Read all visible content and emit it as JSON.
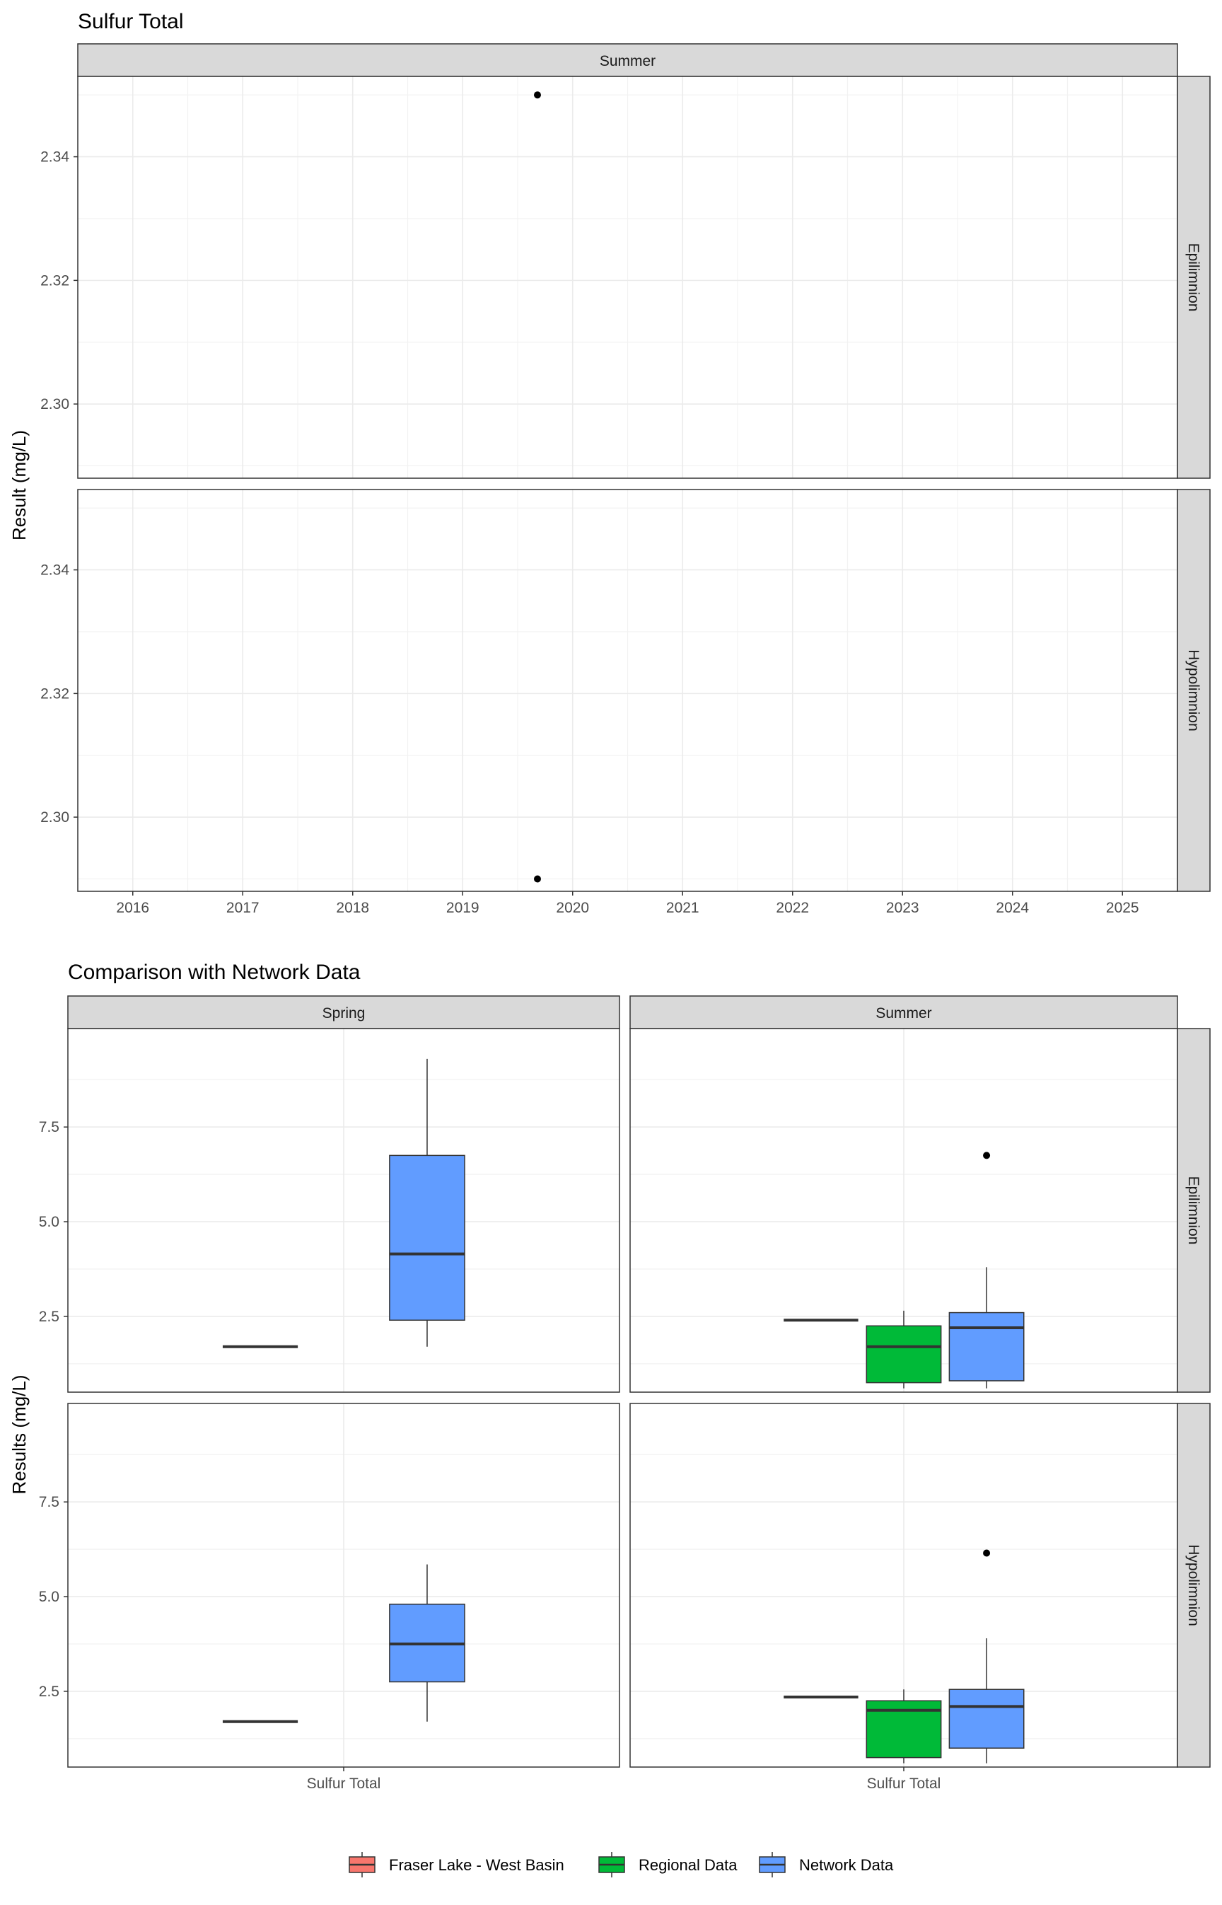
{
  "chart_data": [
    {
      "type": "scatter",
      "title": "Sulfur Total",
      "ylabel": "Result (mg/L)",
      "facet_columns": [
        "Summer"
      ],
      "facet_rows": [
        "Epilimnion",
        "Hypolimnion"
      ],
      "x_ticks": [
        "2016",
        "2017",
        "2018",
        "2019",
        "2020",
        "2021",
        "2022",
        "2023",
        "2024",
        "2025"
      ],
      "xlim": [
        2015.5,
        2025.5
      ],
      "ylim": [
        2.288,
        2.353
      ],
      "y_ticks": [
        2.3,
        2.32,
        2.34
      ],
      "y_tick_labels": [
        "2.30",
        "2.32",
        "2.34"
      ],
      "grid": true,
      "points": [
        {
          "facet_col": "Summer",
          "facet_row": "Epilimnion",
          "x": 2019.68,
          "y": 2.35
        },
        {
          "facet_col": "Summer",
          "facet_row": "Hypolimnion",
          "x": 2019.68,
          "y": 2.29
        }
      ]
    },
    {
      "type": "box",
      "title": "Comparison with Network Data",
      "ylabel": "Results (mg/L)",
      "facet_columns": [
        "Spring",
        "Summer"
      ],
      "facet_rows": [
        "Epilimnion",
        "Hypolimnion"
      ],
      "x_category": "Sulfur Total",
      "ylim": [
        0.5,
        10.1
      ],
      "y_ticks": [
        2.5,
        5.0,
        7.5
      ],
      "y_tick_labels": [
        "2.5",
        "5.0",
        "7.5"
      ],
      "grid": true,
      "legend_position": "bottom",
      "legend": [
        {
          "label": "Fraser Lake - West Basin",
          "color": "#F8766D"
        },
        {
          "label": "Regional Data",
          "color": "#00BA38"
        },
        {
          "label": "Network Data",
          "color": "#619CFF"
        }
      ],
      "groups": [
        "Fraser Lake - West Basin",
        "Regional Data",
        "Network Data"
      ],
      "boxes": [
        {
          "facet_col": "Spring",
          "facet_row": "Epilimnion",
          "group": "Fraser Lake - West Basin",
          "min": 1.7,
          "q1": 1.7,
          "median": 1.7,
          "q3": 1.7,
          "max": 1.7,
          "outliers": []
        },
        {
          "facet_col": "Spring",
          "facet_row": "Epilimnion",
          "group": "Network Data",
          "min": 1.7,
          "q1": 2.4,
          "median": 4.15,
          "q3": 6.75,
          "max": 9.3,
          "outliers": []
        },
        {
          "facet_col": "Summer",
          "facet_row": "Epilimnion",
          "group": "Fraser Lake - West Basin",
          "min": 2.4,
          "q1": 2.4,
          "median": 2.4,
          "q3": 2.4,
          "max": 2.4,
          "outliers": []
        },
        {
          "facet_col": "Summer",
          "facet_row": "Epilimnion",
          "group": "Regional Data",
          "min": 0.6,
          "q1": 0.75,
          "median": 1.7,
          "q3": 2.25,
          "max": 2.65,
          "outliers": []
        },
        {
          "facet_col": "Summer",
          "facet_row": "Epilimnion",
          "group": "Network Data",
          "min": 0.6,
          "q1": 0.8,
          "median": 2.2,
          "q3": 2.6,
          "max": 3.8,
          "outliers": [
            6.75
          ]
        },
        {
          "facet_col": "Spring",
          "facet_row": "Hypolimnion",
          "group": "Fraser Lake - West Basin",
          "min": 1.7,
          "q1": 1.7,
          "median": 1.7,
          "q3": 1.7,
          "max": 1.7,
          "outliers": []
        },
        {
          "facet_col": "Spring",
          "facet_row": "Hypolimnion",
          "group": "Network Data",
          "min": 1.7,
          "q1": 2.75,
          "median": 3.75,
          "q3": 4.8,
          "max": 5.85,
          "outliers": []
        },
        {
          "facet_col": "Summer",
          "facet_row": "Hypolimnion",
          "group": "Fraser Lake - West Basin",
          "min": 2.35,
          "q1": 2.35,
          "median": 2.35,
          "q3": 2.35,
          "max": 2.35,
          "outliers": []
        },
        {
          "facet_col": "Summer",
          "facet_row": "Hypolimnion",
          "group": "Regional Data",
          "min": 0.6,
          "q1": 0.75,
          "median": 2.0,
          "q3": 2.25,
          "max": 2.55,
          "outliers": []
        },
        {
          "facet_col": "Summer",
          "facet_row": "Hypolimnion",
          "group": "Network Data",
          "min": 0.6,
          "q1": 1.0,
          "median": 2.1,
          "q3": 2.55,
          "max": 3.9,
          "outliers": [
            6.15
          ]
        }
      ]
    }
  ]
}
